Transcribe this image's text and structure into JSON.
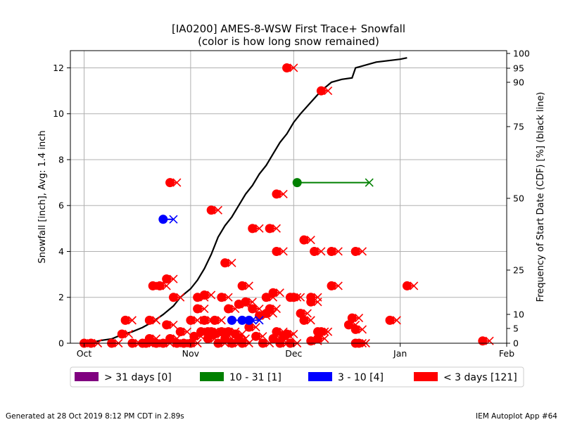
{
  "chart_data": {
    "type": "scatter",
    "title": "[IA0200] AMES-8-WSW First Trace+ Snowfall",
    "subtitle": "(color is how long snow remained)",
    "ylabel": "Snowfall [inch], Avg: 1.4 inch",
    "y2label": "Frequency of Start Date (CDF) [%] (black line)",
    "x_axis": {
      "ticks": [
        {
          "date": "10-01",
          "label": "Oct"
        },
        {
          "date": "11-01",
          "label": "Nov"
        },
        {
          "date": "12-01",
          "label": "Dec"
        },
        {
          "date": "01-01",
          "label": "Jan"
        },
        {
          "date": "02-01",
          "label": "Feb"
        }
      ],
      "range": [
        "09-27",
        "02-01"
      ]
    },
    "y_axis": {
      "ticks": [
        0,
        2,
        4,
        6,
        8,
        10,
        12
      ],
      "range": [
        0,
        12.75
      ]
    },
    "y2_axis": {
      "ticks": [
        0,
        5,
        10,
        25,
        50,
        75,
        90,
        95,
        100
      ]
    },
    "grid": true,
    "legend_position": "bottom",
    "legend": [
      {
        "label": "> 31 days [0]",
        "color": "#800080"
      },
      {
        "label": "10 - 31 [1]",
        "color": "#008000"
      },
      {
        "label": "3 - 10 [4]",
        "color": "#0000ff"
      },
      {
        "label": "< 3 days [121]",
        "color": "#ff0000"
      }
    ],
    "events": [
      {
        "start": "10-01",
        "end": "10-03",
        "snow": 0.0,
        "cat": "lt3"
      },
      {
        "start": "10-03",
        "end": "10-05",
        "snow": 0.0,
        "cat": "lt3"
      },
      {
        "start": "10-09",
        "end": "10-11",
        "snow": 0.0,
        "cat": "lt3"
      },
      {
        "start": "10-12",
        "end": "10-14",
        "snow": 0.4,
        "cat": "lt3"
      },
      {
        "start": "10-13",
        "end": "10-15",
        "snow": 1.0,
        "cat": "lt3"
      },
      {
        "start": "10-15",
        "end": "10-17",
        "snow": 0.0,
        "cat": "lt3"
      },
      {
        "start": "10-18",
        "end": "10-20",
        "snow": 0.0,
        "cat": "lt3"
      },
      {
        "start": "10-19",
        "end": "10-21",
        "snow": 0.0,
        "cat": "lt3"
      },
      {
        "start": "10-20",
        "end": "10-22",
        "snow": 0.2,
        "cat": "lt3"
      },
      {
        "start": "10-20",
        "end": "10-22",
        "snow": 1.0,
        "cat": "lt3"
      },
      {
        "start": "10-21",
        "end": "10-23",
        "snow": 2.5,
        "cat": "lt3"
      },
      {
        "start": "10-22",
        "end": "10-24",
        "snow": 0.0,
        "cat": "lt3"
      },
      {
        "start": "10-23",
        "end": "10-25",
        "snow": 2.5,
        "cat": "lt3"
      },
      {
        "start": "10-24",
        "end": "10-26",
        "snow": 0.0,
        "cat": "lt3"
      },
      {
        "start": "10-25",
        "end": "10-27",
        "snow": 2.8,
        "cat": "lt3"
      },
      {
        "start": "10-25",
        "end": "10-27",
        "snow": 0.8,
        "cat": "lt3"
      },
      {
        "start": "10-26",
        "end": "10-28",
        "snow": 7.0,
        "cat": "lt3"
      },
      {
        "start": "10-26",
        "end": "10-28",
        "snow": 0.2,
        "cat": "lt3"
      },
      {
        "start": "10-27",
        "end": "10-29",
        "snow": 2.0,
        "cat": "lt3"
      },
      {
        "start": "10-28",
        "end": "10-30",
        "snow": 0.0,
        "cat": "lt3"
      },
      {
        "start": "10-29",
        "end": "10-31",
        "snow": 0.5,
        "cat": "lt3"
      },
      {
        "start": "10-30",
        "end": "11-01",
        "snow": 0.0,
        "cat": "lt3"
      },
      {
        "start": "11-01",
        "end": "11-03",
        "snow": 1.0,
        "cat": "lt3"
      },
      {
        "start": "11-01",
        "end": "11-03",
        "snow": 0.0,
        "cat": "lt3"
      },
      {
        "start": "11-02",
        "end": "11-04",
        "snow": 0.3,
        "cat": "lt3"
      },
      {
        "start": "11-03",
        "end": "11-05",
        "snow": 2.0,
        "cat": "lt3"
      },
      {
        "start": "11-03",
        "end": "11-05",
        "snow": 1.5,
        "cat": "lt3"
      },
      {
        "start": "11-04",
        "end": "11-06",
        "snow": 0.5,
        "cat": "lt3"
      },
      {
        "start": "11-05",
        "end": "11-07",
        "snow": 2.1,
        "cat": "lt3"
      },
      {
        "start": "11-05",
        "end": "11-07",
        "snow": 1.0,
        "cat": "lt3"
      },
      {
        "start": "11-06",
        "end": "11-08",
        "snow": 0.5,
        "cat": "lt3"
      },
      {
        "start": "11-06",
        "end": "11-08",
        "snow": 0.2,
        "cat": "lt3"
      },
      {
        "start": "11-07",
        "end": "11-09",
        "snow": 5.8,
        "cat": "lt3"
      },
      {
        "start": "11-07",
        "end": "11-09",
        "snow": 0.5,
        "cat": "lt3"
      },
      {
        "start": "11-08",
        "end": "11-10",
        "snow": 1.0,
        "cat": "lt3"
      },
      {
        "start": "11-08",
        "end": "11-10",
        "snow": 0.4,
        "cat": "lt3"
      },
      {
        "start": "11-09",
        "end": "11-11",
        "snow": 0.0,
        "cat": "lt3"
      },
      {
        "start": "11-10",
        "end": "11-12",
        "snow": 2.0,
        "cat": "lt3"
      },
      {
        "start": "11-10",
        "end": "11-12",
        "snow": 0.5,
        "cat": "lt3"
      },
      {
        "start": "11-11",
        "end": "11-13",
        "snow": 3.5,
        "cat": "lt3"
      },
      {
        "start": "11-11",
        "end": "11-13",
        "snow": 0.2,
        "cat": "lt3"
      },
      {
        "start": "11-12",
        "end": "11-14",
        "snow": 1.5,
        "cat": "lt3"
      },
      {
        "start": "11-12",
        "end": "11-14",
        "snow": 0.5,
        "cat": "lt3"
      },
      {
        "start": "11-13",
        "end": "11-15",
        "snow": 0.0,
        "cat": "lt3"
      },
      {
        "start": "11-14",
        "end": "11-16",
        "snow": 0.4,
        "cat": "lt3"
      },
      {
        "start": "11-15",
        "end": "11-17",
        "snow": 1.7,
        "cat": "lt3"
      },
      {
        "start": "11-15",
        "end": "11-17",
        "snow": 0.2,
        "cat": "lt3"
      },
      {
        "start": "11-16",
        "end": "11-18",
        "snow": 2.5,
        "cat": "lt3"
      },
      {
        "start": "11-16",
        "end": "11-18",
        "snow": 0.0,
        "cat": "lt3"
      },
      {
        "start": "11-17",
        "end": "11-19",
        "snow": 1.8,
        "cat": "lt3"
      },
      {
        "start": "11-18",
        "end": "11-20",
        "snow": 0.7,
        "cat": "lt3"
      },
      {
        "start": "11-19",
        "end": "11-21",
        "snow": 5.0,
        "cat": "lt3"
      },
      {
        "start": "11-19",
        "end": "11-21",
        "snow": 1.5,
        "cat": "lt3"
      },
      {
        "start": "11-20",
        "end": "11-22",
        "snow": 0.3,
        "cat": "lt3"
      },
      {
        "start": "11-21",
        "end": "11-23",
        "snow": 1.2,
        "cat": "lt3"
      },
      {
        "start": "11-22",
        "end": "11-24",
        "snow": 0.0,
        "cat": "lt3"
      },
      {
        "start": "11-23",
        "end": "11-25",
        "snow": 2.0,
        "cat": "lt3"
      },
      {
        "start": "11-23",
        "end": "11-25",
        "snow": 1.3,
        "cat": "lt3"
      },
      {
        "start": "11-24",
        "end": "11-26",
        "snow": 5.0,
        "cat": "lt3"
      },
      {
        "start": "11-24",
        "end": "11-26",
        "snow": 1.5,
        "cat": "lt3"
      },
      {
        "start": "11-25",
        "end": "11-27",
        "snow": 2.2,
        "cat": "lt3"
      },
      {
        "start": "11-25",
        "end": "11-27",
        "snow": 0.2,
        "cat": "lt3"
      },
      {
        "start": "11-26",
        "end": "11-28",
        "snow": 6.5,
        "cat": "lt3"
      },
      {
        "start": "11-26",
        "end": "11-28",
        "snow": 4.0,
        "cat": "lt3"
      },
      {
        "start": "11-26",
        "end": "11-28",
        "snow": 0.5,
        "cat": "lt3"
      },
      {
        "start": "11-27",
        "end": "11-29",
        "snow": 0.0,
        "cat": "lt3"
      },
      {
        "start": "11-28",
        "end": "11-30",
        "snow": 0.3,
        "cat": "lt3"
      },
      {
        "start": "11-29",
        "end": "12-01",
        "snow": 12.0,
        "cat": "lt3"
      },
      {
        "start": "11-29",
        "end": "12-01",
        "snow": 0.4,
        "cat": "lt3"
      },
      {
        "start": "11-30",
        "end": "12-02",
        "snow": 2.0,
        "cat": "lt3"
      },
      {
        "start": "11-30",
        "end": "12-02",
        "snow": 0.0,
        "cat": "lt3"
      },
      {
        "start": "12-01",
        "end": "12-03",
        "snow": 2.0,
        "cat": "lt3"
      },
      {
        "start": "12-03",
        "end": "12-05",
        "snow": 1.3,
        "cat": "lt3"
      },
      {
        "start": "12-04",
        "end": "12-06",
        "snow": 4.5,
        "cat": "lt3"
      },
      {
        "start": "12-04",
        "end": "12-06",
        "snow": 1.0,
        "cat": "lt3"
      },
      {
        "start": "12-06",
        "end": "12-08",
        "snow": 2.0,
        "cat": "lt3"
      },
      {
        "start": "12-06",
        "end": "12-08",
        "snow": 1.8,
        "cat": "lt3"
      },
      {
        "start": "12-06",
        "end": "12-08",
        "snow": 0.1,
        "cat": "lt3"
      },
      {
        "start": "12-07",
        "end": "12-09",
        "snow": 4.0,
        "cat": "lt3"
      },
      {
        "start": "12-08",
        "end": "12-10",
        "snow": 0.5,
        "cat": "lt3"
      },
      {
        "start": "12-08",
        "end": "12-10",
        "snow": 0.2,
        "cat": "lt3"
      },
      {
        "start": "12-09",
        "end": "12-11",
        "snow": 11.0,
        "cat": "lt3"
      },
      {
        "start": "12-09",
        "end": "12-11",
        "snow": 0.5,
        "cat": "lt3"
      },
      {
        "start": "12-12",
        "end": "12-14",
        "snow": 4.0,
        "cat": "lt3"
      },
      {
        "start": "12-12",
        "end": "12-14",
        "snow": 2.5,
        "cat": "lt3"
      },
      {
        "start": "12-17",
        "end": "12-19",
        "snow": 0.8,
        "cat": "lt3"
      },
      {
        "start": "12-18",
        "end": "12-20",
        "snow": 1.1,
        "cat": "lt3"
      },
      {
        "start": "12-19",
        "end": "12-21",
        "snow": 4.0,
        "cat": "lt3"
      },
      {
        "start": "12-19",
        "end": "12-21",
        "snow": 0.6,
        "cat": "lt3"
      },
      {
        "start": "12-19",
        "end": "12-21",
        "snow": 0.0,
        "cat": "lt3"
      },
      {
        "start": "12-20",
        "end": "12-22",
        "snow": 0.0,
        "cat": "lt3"
      },
      {
        "start": "12-29",
        "end": "12-31",
        "snow": 1.0,
        "cat": "lt3"
      },
      {
        "start": "01-03",
        "end": "01-05",
        "snow": 2.5,
        "cat": "lt3"
      },
      {
        "start": "01-25",
        "end": "01-27",
        "snow": 0.1,
        "cat": "lt3"
      },
      {
        "start": "12-02",
        "end": "12-23",
        "snow": 7.0,
        "cat": "d10_31"
      },
      {
        "start": "10-24",
        "end": "10-27",
        "snow": 5.4,
        "cat": "d3_10"
      },
      {
        "start": "11-13",
        "end": "11-17",
        "snow": 1.0,
        "cat": "d3_10"
      },
      {
        "start": "11-18",
        "end": "11-21",
        "snow": 1.0,
        "cat": "d3_10"
      },
      {
        "start": "11-16",
        "end": "11-19",
        "snow": 1.0,
        "cat": "d3_10"
      }
    ],
    "cdf_line": [
      {
        "date": "10-02",
        "pct": 0.0
      },
      {
        "date": "10-04",
        "pct": 0.5
      },
      {
        "date": "10-06",
        "pct": 1.0
      },
      {
        "date": "10-09",
        "pct": 1.5
      },
      {
        "date": "10-12",
        "pct": 3.0
      },
      {
        "date": "10-15",
        "pct": 4.0
      },
      {
        "date": "10-18",
        "pct": 5.5
      },
      {
        "date": "10-21",
        "pct": 7.5
      },
      {
        "date": "10-24",
        "pct": 10.0
      },
      {
        "date": "10-27",
        "pct": 13.0
      },
      {
        "date": "10-29",
        "pct": 16.0
      },
      {
        "date": "11-01",
        "pct": 19.0
      },
      {
        "date": "11-03",
        "pct": 22.0
      },
      {
        "date": "11-05",
        "pct": 26.0
      },
      {
        "date": "11-07",
        "pct": 31.0
      },
      {
        "date": "11-09",
        "pct": 37.0
      },
      {
        "date": "11-11",
        "pct": 41.0
      },
      {
        "date": "11-13",
        "pct": 44.0
      },
      {
        "date": "11-15",
        "pct": 48.0
      },
      {
        "date": "11-17",
        "pct": 52.0
      },
      {
        "date": "11-19",
        "pct": 55.0
      },
      {
        "date": "11-21",
        "pct": 59.0
      },
      {
        "date": "11-23",
        "pct": 62.0
      },
      {
        "date": "11-25",
        "pct": 66.0
      },
      {
        "date": "11-27",
        "pct": 70.0
      },
      {
        "date": "11-29",
        "pct": 73.0
      },
      {
        "date": "12-01",
        "pct": 77.0
      },
      {
        "date": "12-03",
        "pct": 80.0
      },
      {
        "date": "12-06",
        "pct": 84.0
      },
      {
        "date": "12-09",
        "pct": 88.0
      },
      {
        "date": "12-12",
        "pct": 91.0
      },
      {
        "date": "12-15",
        "pct": 92.0
      },
      {
        "date": "12-18",
        "pct": 92.5
      },
      {
        "date": "12-19",
        "pct": 96.0
      },
      {
        "date": "12-25",
        "pct": 98.0
      },
      {
        "date": "01-01",
        "pct": 99.0
      },
      {
        "date": "01-03",
        "pct": 99.5
      }
    ],
    "footer_left": "Generated at 28 Oct 2019 8:12 PM CDT in 2.89s",
    "footer_right": "IEM Autoplot App #64"
  }
}
